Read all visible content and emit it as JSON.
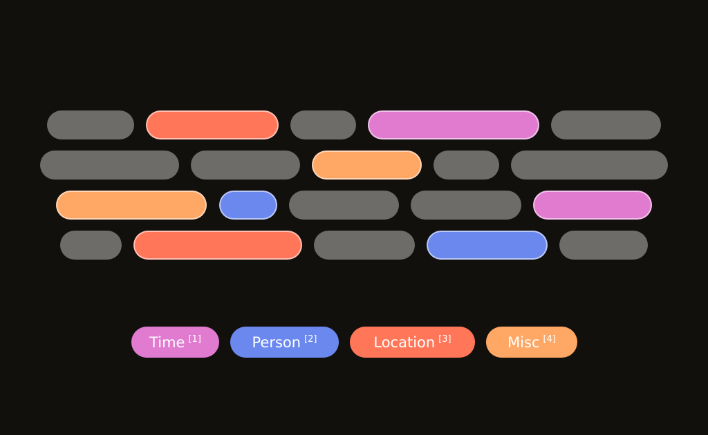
{
  "colors": {
    "background": "#12100d",
    "neutral": "#6e6c69",
    "time": "#e07bd0",
    "person": "#6b88ee",
    "location": "#ff7659",
    "misc": "#ffa764"
  },
  "rows": [
    [
      "none",
      "location",
      "none",
      "time",
      "none"
    ],
    [
      "none",
      "none",
      "misc",
      "none",
      "none"
    ],
    [
      "misc",
      "person",
      "none",
      "none",
      "time"
    ],
    [
      "none",
      "location",
      "none",
      "person",
      "none"
    ]
  ],
  "legend": [
    {
      "key": "time",
      "label": "Time",
      "ref": "[1]"
    },
    {
      "key": "person",
      "label": "Person",
      "ref": "[2]"
    },
    {
      "key": "location",
      "label": "Location",
      "ref": "[3]"
    },
    {
      "key": "misc",
      "label": "Misc",
      "ref": "[4]"
    }
  ]
}
